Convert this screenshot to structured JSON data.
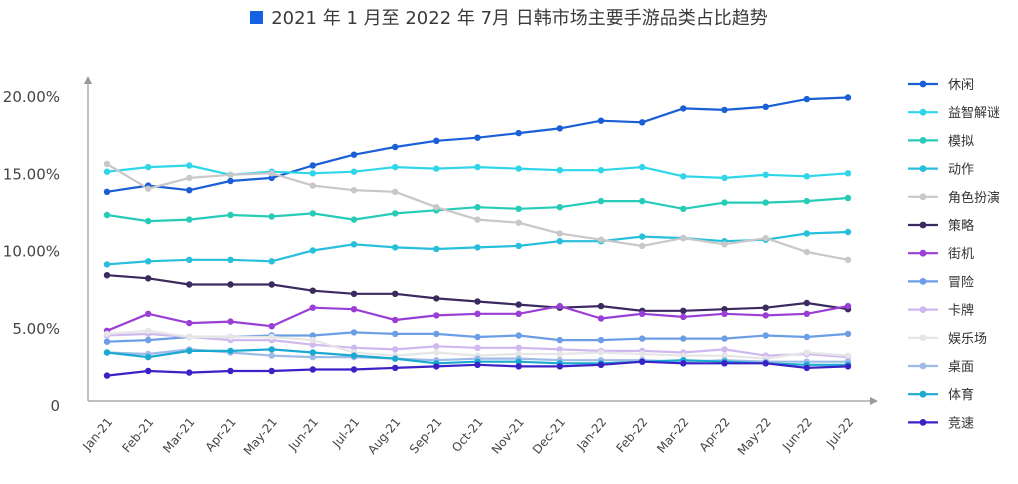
{
  "chart_data": {
    "type": "line",
    "title": "2021 年 1 月至 2022 年 7月 日韩市场主要手游品类占比趋势",
    "title_marker_color": "#1561e4",
    "xlabel": "",
    "ylabel": "",
    "x": [
      "Jan-21",
      "Feb-21",
      "Mar-21",
      "Apr-21",
      "May-21",
      "Jun-21",
      "Jul-21",
      "Aug-21",
      "Sep-21",
      "Oct-21",
      "Nov-21",
      "Dec-21",
      "Jan-22",
      "Feb-22",
      "Mar-22",
      "Apr-22",
      "May-22",
      "Jun-22",
      "Jul-22"
    ],
    "ylim": [
      0,
      20
    ],
    "y_ticks": [
      0,
      5,
      10,
      15,
      20
    ],
    "y_tick_labels": [
      "0",
      "5.00%",
      "10.00%",
      "15.00%",
      "20.00%"
    ],
    "grid": false,
    "legend_position": "right",
    "series": [
      {
        "name": "休闲",
        "color": "#1a5fd6",
        "values": [
          13.8,
          14.2,
          13.9,
          14.5,
          14.7,
          15.5,
          16.2,
          16.7,
          17.1,
          17.3,
          17.6,
          17.9,
          18.4,
          18.3,
          19.2,
          19.1,
          19.3,
          19.8,
          19.9
        ]
      },
      {
        "name": "益智解谜",
        "color": "#2fd6ea",
        "values": [
          15.1,
          15.4,
          15.5,
          14.9,
          15.1,
          15.0,
          15.1,
          15.4,
          15.3,
          15.4,
          15.3,
          15.2,
          15.2,
          15.4,
          14.8,
          14.7,
          14.9,
          14.8,
          15.0
        ]
      },
      {
        "name": "模拟",
        "color": "#26ccb8",
        "values": [
          12.3,
          11.9,
          12.0,
          12.3,
          12.2,
          12.4,
          12.0,
          12.4,
          12.6,
          12.8,
          12.7,
          12.8,
          13.2,
          13.2,
          12.7,
          13.1,
          13.1,
          13.2,
          13.4
        ]
      },
      {
        "name": "动作",
        "color": "#27bfdc",
        "values": [
          9.1,
          9.3,
          9.4,
          9.4,
          9.3,
          10.0,
          10.4,
          10.2,
          10.1,
          10.2,
          10.3,
          10.6,
          10.6,
          10.9,
          10.8,
          10.6,
          10.7,
          11.1,
          11.2
        ]
      },
      {
        "name": "角色扮演",
        "color": "#c8c8c8",
        "values": [
          15.6,
          14.0,
          14.7,
          14.9,
          15.0,
          14.2,
          13.9,
          13.8,
          12.8,
          12.0,
          11.8,
          11.1,
          10.7,
          10.3,
          10.8,
          10.4,
          10.8,
          9.9,
          9.4
        ]
      },
      {
        "name": "策略",
        "color": "#3a2a5e",
        "values": [
          8.4,
          8.2,
          7.8,
          7.8,
          7.8,
          7.4,
          7.2,
          7.2,
          6.9,
          6.7,
          6.5,
          6.3,
          6.4,
          6.1,
          6.1,
          6.2,
          6.3,
          6.6,
          6.2
        ]
      },
      {
        "name": "街机",
        "color": "#9a3fd6",
        "values": [
          4.8,
          5.9,
          5.3,
          5.4,
          5.1,
          6.3,
          6.2,
          5.5,
          5.8,
          5.9,
          5.9,
          6.4,
          5.6,
          5.9,
          5.7,
          5.9,
          5.8,
          5.9,
          6.4
        ]
      },
      {
        "name": "冒险",
        "color": "#6b9ee6",
        "values": [
          4.1,
          4.2,
          4.4,
          4.4,
          4.5,
          4.5,
          4.7,
          4.6,
          4.6,
          4.4,
          4.5,
          4.2,
          4.2,
          4.3,
          4.3,
          4.3,
          4.5,
          4.4,
          4.6
        ]
      },
      {
        "name": "卡牌",
        "color": "#cfb8f0",
        "values": [
          4.5,
          4.6,
          4.4,
          4.2,
          4.2,
          3.9,
          3.7,
          3.6,
          3.8,
          3.7,
          3.7,
          3.6,
          3.5,
          3.5,
          3.4,
          3.6,
          3.2,
          3.3,
          3.1
        ]
      },
      {
        "name": "娱乐场",
        "color": "#e6e6e6",
        "values": [
          4.6,
          4.8,
          4.4,
          4.4,
          4.4,
          4.2,
          3.4,
          3.2,
          3.4,
          3.2,
          3.3,
          3.3,
          3.4,
          3.3,
          3.2,
          3.2,
          3.0,
          3.4,
          3.2
        ]
      },
      {
        "name": "桌面",
        "color": "#9dbbe6",
        "values": [
          3.4,
          3.3,
          3.6,
          3.4,
          3.2,
          3.1,
          3.1,
          3.0,
          2.9,
          3.0,
          3.0,
          2.9,
          2.9,
          2.9,
          2.8,
          2.9,
          2.8,
          2.8,
          2.8
        ]
      },
      {
        "name": "体育",
        "color": "#1aa9d1",
        "values": [
          3.4,
          3.1,
          3.5,
          3.5,
          3.6,
          3.4,
          3.2,
          3.0,
          2.7,
          2.8,
          2.8,
          2.7,
          2.7,
          2.8,
          2.9,
          2.8,
          2.7,
          2.6,
          2.6
        ]
      },
      {
        "name": "竞速",
        "color": "#3a22c6",
        "values": [
          1.9,
          2.2,
          2.1,
          2.2,
          2.2,
          2.3,
          2.3,
          2.4,
          2.5,
          2.6,
          2.5,
          2.5,
          2.6,
          2.8,
          2.7,
          2.7,
          2.7,
          2.4,
          2.5
        ]
      }
    ]
  }
}
